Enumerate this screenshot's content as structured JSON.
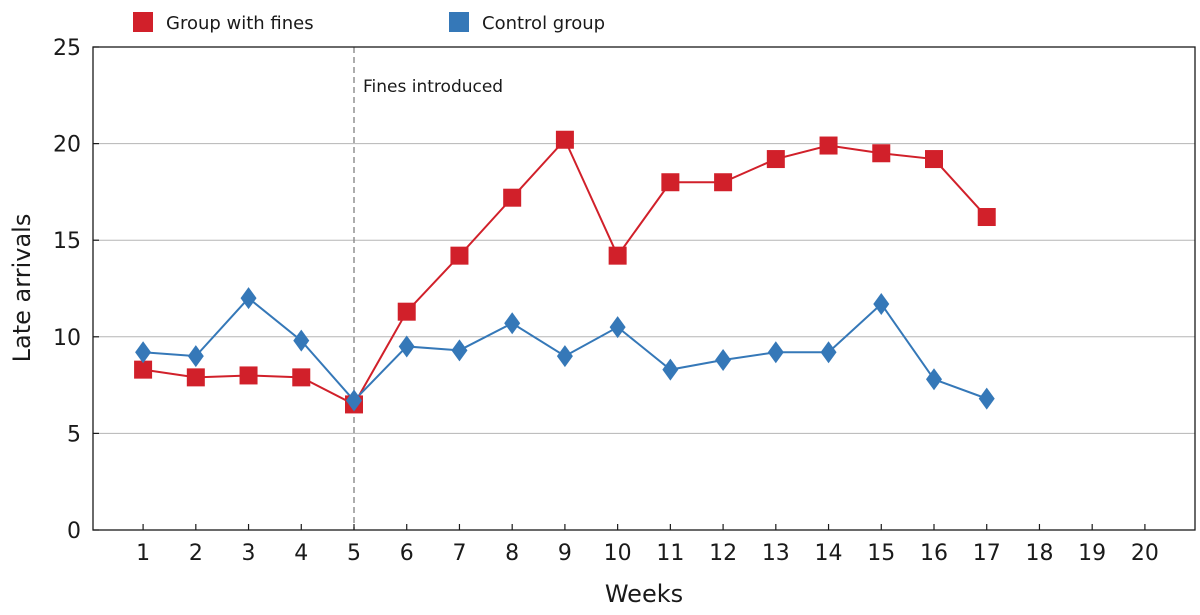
{
  "chart_data": {
    "type": "line",
    "xlabel": "Weeks",
    "ylabel": "Late arrivals",
    "xlim": [
      0.05,
      20.95
    ],
    "ylim": [
      0,
      25
    ],
    "x_ticks": [
      1,
      2,
      3,
      4,
      5,
      6,
      7,
      8,
      9,
      10,
      11,
      12,
      13,
      14,
      15,
      16,
      17,
      18,
      19,
      20
    ],
    "y_ticks": [
      0,
      5,
      10,
      15,
      20,
      25
    ],
    "grid": "horizontal",
    "legend_placement": "top-left",
    "x": [
      1,
      2,
      3,
      4,
      5,
      6,
      7,
      8,
      9,
      10,
      11,
      12,
      13,
      14,
      15,
      16,
      17
    ],
    "series": [
      {
        "name": "Group with fines",
        "color": "#d1202a",
        "marker": "square",
        "values": [
          8.3,
          7.9,
          8.0,
          7.9,
          6.5,
          11.3,
          14.2,
          17.2,
          20.2,
          14.2,
          18.0,
          18.0,
          19.2,
          19.9,
          19.5,
          19.2,
          16.2
        ]
      },
      {
        "name": "Control group",
        "color": "#3578b8",
        "marker": "diamond",
        "values": [
          9.2,
          9.0,
          12.0,
          9.8,
          6.7,
          9.5,
          9.3,
          10.7,
          9.0,
          10.5,
          8.3,
          8.8,
          9.2,
          9.2,
          11.7,
          7.8,
          6.8
        ]
      }
    ],
    "annotations": [
      {
        "x": 5,
        "text": "Fines introduced",
        "style": "dashed-vertical-line"
      }
    ]
  }
}
